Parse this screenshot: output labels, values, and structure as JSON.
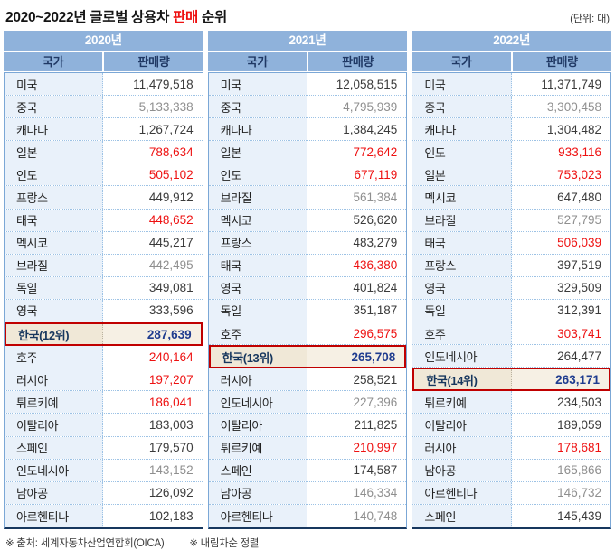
{
  "title": {
    "prefix": "2020~2022년 글로벌 상용차 ",
    "highlight": "판매",
    "suffix": " 순위"
  },
  "unit_label": "(단위: 대)",
  "column_headers": {
    "country": "국가",
    "sales": "판매량"
  },
  "footer": {
    "source": "※ 출처: 세계자동차산업연합회(OICA)",
    "sort": "※ 내림차순 정렬"
  },
  "colors": {
    "header_blue": "#8fb2db",
    "header_year_text": "#ffffff",
    "header_col_text": "#1f3864",
    "country_cell_bg": "#e9f1fa",
    "value_red": "#ee1111",
    "value_gray": "#8f8f8f",
    "value_dark": "#3a3a3a",
    "korea_bg": "#f0e8d7",
    "korea_value_text": "#1f3c8f",
    "korea_border": "#c00000",
    "bottom_border": "#17375e"
  },
  "chart_data": {
    "type": "table",
    "title": "2020~2022년 글로벌 상용차 판매 순위",
    "unit": "대",
    "groups": [
      {
        "year": "2020년",
        "rows": [
          {
            "country": "미국",
            "value": "11,479,518",
            "tone": "dark"
          },
          {
            "country": "중국",
            "value": "5,133,338",
            "tone": "gray"
          },
          {
            "country": "캐나다",
            "value": "1,267,724",
            "tone": "dark"
          },
          {
            "country": "일본",
            "value": "788,634",
            "tone": "red"
          },
          {
            "country": "인도",
            "value": "505,102",
            "tone": "red"
          },
          {
            "country": "프랑스",
            "value": "449,912",
            "tone": "dark"
          },
          {
            "country": "태국",
            "value": "448,652",
            "tone": "red"
          },
          {
            "country": "멕시코",
            "value": "445,217",
            "tone": "dark"
          },
          {
            "country": "브라질",
            "value": "442,495",
            "tone": "gray"
          },
          {
            "country": "독일",
            "value": "349,081",
            "tone": "dark"
          },
          {
            "country": "영국",
            "value": "333,596",
            "tone": "dark"
          },
          {
            "country": "한국(12위)",
            "value": "287,639",
            "tone": "korea",
            "highlight": true
          },
          {
            "country": "호주",
            "value": "240,164",
            "tone": "red"
          },
          {
            "country": "러시아",
            "value": "197,207",
            "tone": "red"
          },
          {
            "country": "튀르키예",
            "value": "186,041",
            "tone": "red"
          },
          {
            "country": "이탈리아",
            "value": "183,003",
            "tone": "dark"
          },
          {
            "country": "스페인",
            "value": "179,570",
            "tone": "dark"
          },
          {
            "country": "인도네시아",
            "value": "143,152",
            "tone": "gray"
          },
          {
            "country": "남아공",
            "value": "126,092",
            "tone": "dark"
          },
          {
            "country": "아르헨티나",
            "value": "102,183",
            "tone": "dark"
          }
        ]
      },
      {
        "year": "2021년",
        "rows": [
          {
            "country": "미국",
            "value": "12,058,515",
            "tone": "dark"
          },
          {
            "country": "중국",
            "value": "4,795,939",
            "tone": "gray"
          },
          {
            "country": "캐나다",
            "value": "1,384,245",
            "tone": "dark"
          },
          {
            "country": "일본",
            "value": "772,642",
            "tone": "red"
          },
          {
            "country": "인도",
            "value": "677,119",
            "tone": "red"
          },
          {
            "country": "브라질",
            "value": "561,384",
            "tone": "gray"
          },
          {
            "country": "멕시코",
            "value": "526,620",
            "tone": "dark"
          },
          {
            "country": "프랑스",
            "value": "483,279",
            "tone": "dark"
          },
          {
            "country": "태국",
            "value": "436,380",
            "tone": "red"
          },
          {
            "country": "영국",
            "value": "401,824",
            "tone": "dark"
          },
          {
            "country": "독일",
            "value": "351,187",
            "tone": "dark"
          },
          {
            "country": "호주",
            "value": "296,575",
            "tone": "red"
          },
          {
            "country": "한국(13위)",
            "value": "265,708",
            "tone": "korea",
            "highlight": true
          },
          {
            "country": "러시아",
            "value": "258,521",
            "tone": "dark"
          },
          {
            "country": "인도네시아",
            "value": "227,396",
            "tone": "gray"
          },
          {
            "country": "이탈리아",
            "value": "211,825",
            "tone": "dark"
          },
          {
            "country": "튀르키예",
            "value": "210,997",
            "tone": "red"
          },
          {
            "country": "스페인",
            "value": "174,587",
            "tone": "dark"
          },
          {
            "country": "남아공",
            "value": "146,334",
            "tone": "gray"
          },
          {
            "country": "아르헨티나",
            "value": "140,748",
            "tone": "gray"
          }
        ]
      },
      {
        "year": "2022년",
        "rows": [
          {
            "country": "미국",
            "value": "11,371,749",
            "tone": "dark"
          },
          {
            "country": "중국",
            "value": "3,300,458",
            "tone": "gray"
          },
          {
            "country": "캐나다",
            "value": "1,304,482",
            "tone": "dark"
          },
          {
            "country": "인도",
            "value": "933,116",
            "tone": "red"
          },
          {
            "country": "일본",
            "value": "753,023",
            "tone": "red"
          },
          {
            "country": "멕시코",
            "value": "647,480",
            "tone": "dark"
          },
          {
            "country": "브라질",
            "value": "527,795",
            "tone": "gray"
          },
          {
            "country": "태국",
            "value": "506,039",
            "tone": "red"
          },
          {
            "country": "프랑스",
            "value": "397,519",
            "tone": "dark"
          },
          {
            "country": "영국",
            "value": "329,509",
            "tone": "dark"
          },
          {
            "country": "독일",
            "value": "312,391",
            "tone": "dark"
          },
          {
            "country": "호주",
            "value": "303,741",
            "tone": "red"
          },
          {
            "country": "인도네시아",
            "value": "264,477",
            "tone": "dark"
          },
          {
            "country": "한국(14위)",
            "value": "263,171",
            "tone": "korea",
            "highlight": true
          },
          {
            "country": "튀르키예",
            "value": "234,503",
            "tone": "dark"
          },
          {
            "country": "이탈리아",
            "value": "189,059",
            "tone": "dark"
          },
          {
            "country": "러시아",
            "value": "178,681",
            "tone": "red"
          },
          {
            "country": "남아공",
            "value": "165,866",
            "tone": "gray"
          },
          {
            "country": "아르헨티나",
            "value": "146,732",
            "tone": "gray"
          },
          {
            "country": "스페인",
            "value": "145,439",
            "tone": "dark"
          }
        ]
      }
    ]
  }
}
